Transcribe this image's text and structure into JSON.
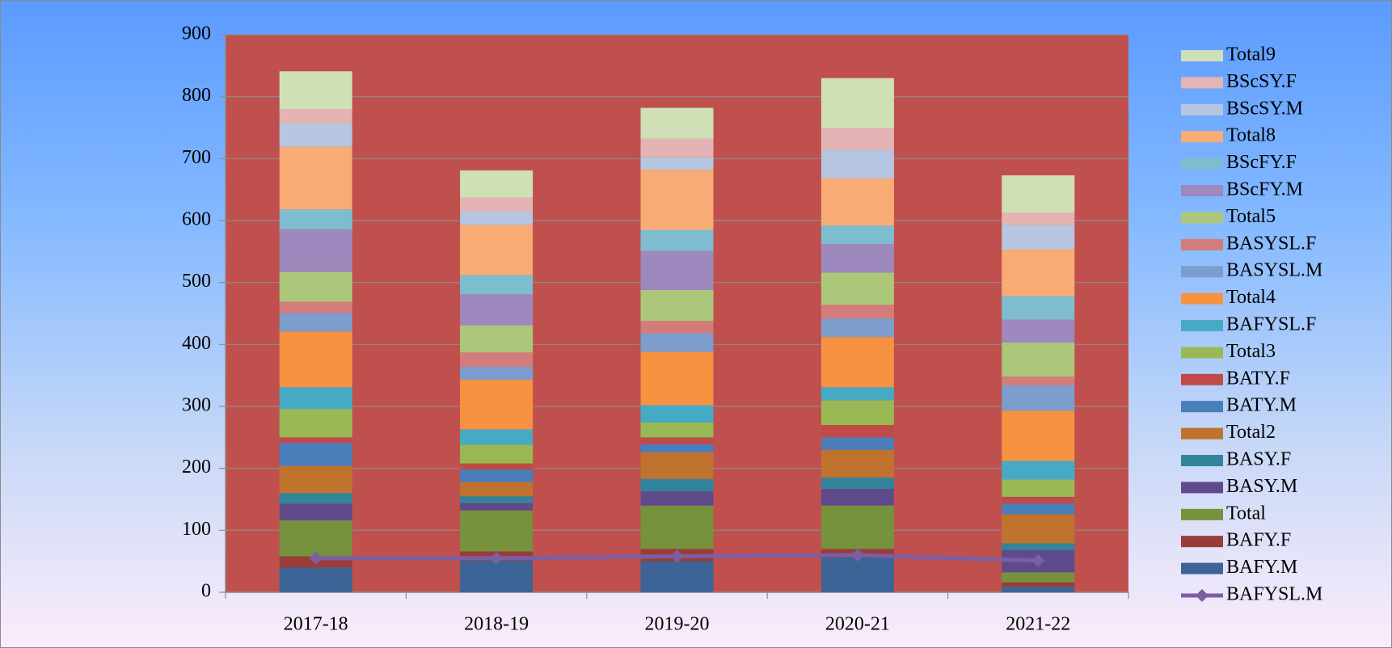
{
  "chart_data": {
    "type": "bar",
    "stacked": true,
    "categories": [
      "2017-18",
      "2018-19",
      "2019-20",
      "2020-21",
      "2021-22"
    ],
    "ylim": [
      0,
      900
    ],
    "yticks": [
      0,
      100,
      200,
      300,
      400,
      500,
      600,
      700,
      800,
      900
    ],
    "grid": true,
    "legend": "right",
    "plot_color": "#c0504d",
    "series": [
      {
        "name": "BAFY.M",
        "color": "#3d6496",
        "values": [
          40,
          51,
          50,
          56,
          9
        ]
      },
      {
        "name": "BAFY.F",
        "color": "#993c3a",
        "values": [
          18,
          15,
          20,
          14,
          7
        ]
      },
      {
        "name": "Total",
        "color": "#76923c",
        "values": [
          58,
          66,
          70,
          70,
          16
        ]
      },
      {
        "name": "BASY.M",
        "color": "#5f4b8b",
        "values": [
          27,
          12,
          23,
          27,
          36
        ]
      },
      {
        "name": "BASY.F",
        "color": "#31849b",
        "values": [
          17,
          11,
          20,
          18,
          11
        ]
      },
      {
        "name": "Total2",
        "color": "#c0722f",
        "values": [
          44,
          23,
          43,
          45,
          47
        ]
      },
      {
        "name": "BATY.M",
        "color": "#4a7ebb",
        "values": [
          37,
          20,
          13,
          20,
          17
        ]
      },
      {
        "name": "BATY.F",
        "color": "#be4b48",
        "values": [
          9,
          10,
          11,
          20,
          11
        ]
      },
      {
        "name": "Total3",
        "color": "#98b954",
        "values": [
          46,
          30,
          24,
          40,
          28
        ]
      },
      {
        "name": "BAFYSL.F",
        "color": "#46aac5",
        "values": [
          35,
          25,
          28,
          21,
          30
        ]
      },
      {
        "name": "Total4",
        "color": "#f69240",
        "values": [
          90,
          80,
          86,
          81,
          81
        ]
      },
      {
        "name": "BASYSL.M",
        "color": "#7d9dcc",
        "values": [
          30,
          21,
          30,
          30,
          41
        ]
      },
      {
        "name": "BASYSL.F",
        "color": "#d27d7b",
        "values": [
          18,
          23,
          20,
          22,
          14
        ]
      },
      {
        "name": "Total5",
        "color": "#adc77a",
        "values": [
          48,
          44,
          50,
          52,
          55
        ]
      },
      {
        "name": "BScFY.M",
        "color": "#9d89bd",
        "values": [
          69,
          50,
          63,
          46,
          37
        ]
      },
      {
        "name": "BScFY.F",
        "color": "#7ebccf",
        "values": [
          32,
          31,
          34,
          30,
          38
        ]
      },
      {
        "name": "Total8",
        "color": "#f9ab75",
        "values": [
          101,
          81,
          97,
          76,
          75
        ]
      },
      {
        "name": "BScSY.M",
        "color": "#b6c6e0",
        "values": [
          38,
          22,
          20,
          46,
          40
        ]
      },
      {
        "name": "BScSY.F",
        "color": "#e3b4b3",
        "values": [
          23,
          22,
          30,
          35,
          20
        ]
      },
      {
        "name": "Total9",
        "color": "#cfe0b7",
        "values": [
          61,
          44,
          50,
          81,
          60
        ]
      },
      {
        "name": "BAFYSL.M",
        "color": "#7b5fa3",
        "type": "line",
        "values": [
          55,
          55,
          58,
          60,
          51
        ]
      }
    ]
  }
}
